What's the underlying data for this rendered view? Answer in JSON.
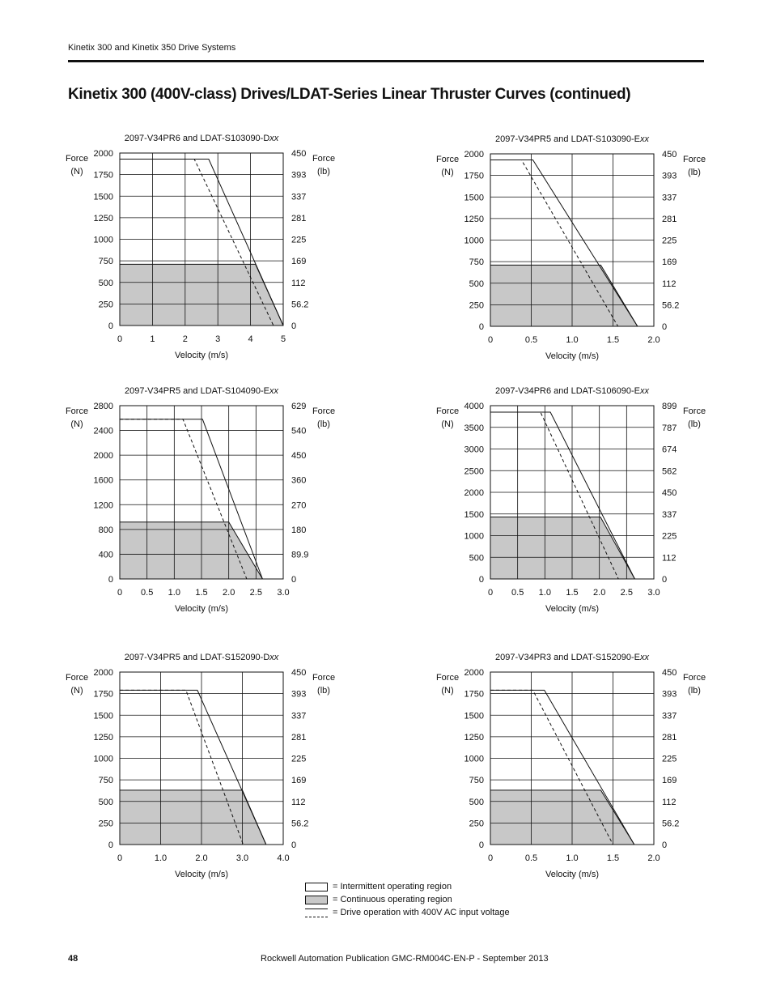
{
  "header": {
    "text": "Kinetix 300 and Kinetix 350 Drive Systems"
  },
  "page_title": "Kinetix 300 (400V-class) Drives/LDAT-Series Linear Thruster Curves (continued)",
  "common_labels": {
    "left_axis": [
      "Force",
      "(N)"
    ],
    "right_axis": [
      "Force",
      "(lb)"
    ],
    "xlabel": "Velocity (m/s)"
  },
  "chart_data": [
    {
      "type": "area",
      "title_prefix": "2097-V34PR6 and LDAT-S103090-D",
      "title_suffix": "xx",
      "xlabel": "Velocity (m/s)",
      "ylabel": "Force (N)",
      "y2label": "Force (lb)",
      "xlim": [
        0,
        5
      ],
      "ylim": [
        0,
        2000
      ],
      "x_ticks": [
        {
          "v": 0,
          "t": "0"
        },
        {
          "v": 1,
          "t": "1"
        },
        {
          "v": 2,
          "t": "2"
        },
        {
          "v": 3,
          "t": "3"
        },
        {
          "v": 4,
          "t": "4"
        },
        {
          "v": 5,
          "t": "5"
        }
      ],
      "y_ticks": [
        {
          "v": 0,
          "t": "0"
        },
        {
          "v": 250,
          "t": "250"
        },
        {
          "v": 500,
          "t": "500"
        },
        {
          "v": 750,
          "t": "750"
        },
        {
          "v": 1000,
          "t": "1000"
        },
        {
          "v": 1250,
          "t": "1250"
        },
        {
          "v": 1500,
          "t": "1500"
        },
        {
          "v": 1750,
          "t": "1750"
        },
        {
          "v": 2000,
          "t": "2000"
        }
      ],
      "y2_ticks": [
        {
          "v": 0,
          "t": "0"
        },
        {
          "v": 250,
          "t": "56.2"
        },
        {
          "v": 500,
          "t": "112"
        },
        {
          "v": 750,
          "t": "169"
        },
        {
          "v": 1000,
          "t": "225"
        },
        {
          "v": 1250,
          "t": "281"
        },
        {
          "v": 1500,
          "t": "337"
        },
        {
          "v": 1750,
          "t": "393"
        },
        {
          "v": 2000,
          "t": "450"
        }
      ],
      "intermittent": [
        [
          0,
          1930
        ],
        [
          2.72,
          1930
        ],
        [
          5,
          0
        ]
      ],
      "continuous": [
        [
          0,
          710
        ],
        [
          4.15,
          710
        ],
        [
          5,
          0
        ]
      ],
      "dashed_400v": [
        [
          0,
          1930
        ],
        [
          2.28,
          1930
        ],
        [
          4.7,
          0
        ]
      ]
    },
    {
      "type": "area",
      "title_prefix": "2097-V34PR5 and LDAT-S103090-E",
      "title_suffix": "xx",
      "xlabel": "Velocity (m/s)",
      "ylabel": "Force (N)",
      "y2label": "Force (lb)",
      "xlim": [
        0,
        2
      ],
      "ylim": [
        0,
        2000
      ],
      "x_ticks": [
        {
          "v": 0,
          "t": "0"
        },
        {
          "v": 0.5,
          "t": "0.5"
        },
        {
          "v": 1.0,
          "t": "1.0"
        },
        {
          "v": 1.5,
          "t": "1.5"
        },
        {
          "v": 2.0,
          "t": "2.0"
        }
      ],
      "y_ticks": [
        {
          "v": 0,
          "t": "0"
        },
        {
          "v": 250,
          "t": "250"
        },
        {
          "v": 500,
          "t": "500"
        },
        {
          "v": 750,
          "t": "750"
        },
        {
          "v": 1000,
          "t": "1000"
        },
        {
          "v": 1250,
          "t": "1250"
        },
        {
          "v": 1500,
          "t": "1500"
        },
        {
          "v": 1750,
          "t": "1750"
        },
        {
          "v": 2000,
          "t": "2000"
        }
      ],
      "y2_ticks": [
        {
          "v": 0,
          "t": "0"
        },
        {
          "v": 250,
          "t": "56.2"
        },
        {
          "v": 500,
          "t": "112"
        },
        {
          "v": 750,
          "t": "169"
        },
        {
          "v": 1000,
          "t": "225"
        },
        {
          "v": 1250,
          "t": "281"
        },
        {
          "v": 1500,
          "t": "337"
        },
        {
          "v": 1750,
          "t": "393"
        },
        {
          "v": 2000,
          "t": "450"
        }
      ],
      "intermittent": [
        [
          0,
          1930
        ],
        [
          0.52,
          1930
        ],
        [
          1.8,
          0
        ]
      ],
      "continuous": [
        [
          0,
          710
        ],
        [
          1.35,
          710
        ],
        [
          1.8,
          0
        ]
      ],
      "dashed_400v": [
        [
          0,
          1930
        ],
        [
          0.38,
          1930
        ],
        [
          1.56,
          0
        ]
      ]
    },
    {
      "type": "area",
      "title_prefix": "2097-V34PR5 and LDAT-S104090-E",
      "title_suffix": "xx",
      "xlabel": "Velocity (m/s)",
      "ylabel": "Force (N)",
      "y2label": "Force (lb)",
      "xlim": [
        0,
        3
      ],
      "ylim": [
        0,
        2800
      ],
      "x_ticks": [
        {
          "v": 0,
          "t": "0"
        },
        {
          "v": 0.5,
          "t": "0.5"
        },
        {
          "v": 1.0,
          "t": "1.0"
        },
        {
          "v": 1.5,
          "t": "1.5"
        },
        {
          "v": 2.0,
          "t": "2.0"
        },
        {
          "v": 2.5,
          "t": "2.5"
        },
        {
          "v": 3.0,
          "t": "3.0"
        }
      ],
      "y_ticks": [
        {
          "v": 0,
          "t": "0"
        },
        {
          "v": 400,
          "t": "400"
        },
        {
          "v": 800,
          "t": "800"
        },
        {
          "v": 1200,
          "t": "1200"
        },
        {
          "v": 1600,
          "t": "1600"
        },
        {
          "v": 2000,
          "t": "2000"
        },
        {
          "v": 2400,
          "t": "2400"
        },
        {
          "v": 2800,
          "t": "2800"
        }
      ],
      "y2_ticks": [
        {
          "v": 0,
          "t": "0"
        },
        {
          "v": 400,
          "t": "89.9"
        },
        {
          "v": 800,
          "t": "180"
        },
        {
          "v": 1200,
          "t": "270"
        },
        {
          "v": 1600,
          "t": "360"
        },
        {
          "v": 2000,
          "t": "450"
        },
        {
          "v": 2400,
          "t": "540"
        },
        {
          "v": 2800,
          "t": "629"
        }
      ],
      "intermittent": [
        [
          0,
          2580
        ],
        [
          1.52,
          2580
        ],
        [
          2.62,
          0
        ]
      ],
      "continuous": [
        [
          0,
          920
        ],
        [
          2.0,
          920
        ],
        [
          2.62,
          0
        ]
      ],
      "dashed_400v": [
        [
          0,
          2580
        ],
        [
          1.16,
          2580
        ],
        [
          2.33,
          0
        ]
      ]
    },
    {
      "type": "area",
      "title_prefix": "2097-V34PR6 and LDAT-S106090-E",
      "title_suffix": "xx",
      "xlabel": "Velocity (m/s)",
      "ylabel": "Force (N)",
      "y2label": "Force (lb)",
      "xlim": [
        0,
        3
      ],
      "ylim": [
        0,
        4000
      ],
      "x_ticks": [
        {
          "v": 0,
          "t": "0"
        },
        {
          "v": 0.5,
          "t": "0.5"
        },
        {
          "v": 1.0,
          "t": "1.0"
        },
        {
          "v": 1.5,
          "t": "1.5"
        },
        {
          "v": 2.0,
          "t": "2.0"
        },
        {
          "v": 2.5,
          "t": "2.5"
        },
        {
          "v": 3.0,
          "t": "3.0"
        }
      ],
      "y_ticks": [
        {
          "v": 0,
          "t": "0"
        },
        {
          "v": 500,
          "t": "500"
        },
        {
          "v": 1000,
          "t": "1000"
        },
        {
          "v": 1500,
          "t": "1500"
        },
        {
          "v": 2000,
          "t": "2000"
        },
        {
          "v": 2500,
          "t": "2500"
        },
        {
          "v": 3000,
          "t": "3000"
        },
        {
          "v": 3500,
          "t": "3500"
        },
        {
          "v": 4000,
          "t": "4000"
        }
      ],
      "y2_ticks": [
        {
          "v": 0,
          "t": "0"
        },
        {
          "v": 500,
          "t": "112"
        },
        {
          "v": 1000,
          "t": "225"
        },
        {
          "v": 1500,
          "t": "337"
        },
        {
          "v": 2000,
          "t": "450"
        },
        {
          "v": 2500,
          "t": "562"
        },
        {
          "v": 3000,
          "t": "674"
        },
        {
          "v": 3500,
          "t": "787"
        },
        {
          "v": 4000,
          "t": "899"
        }
      ],
      "intermittent": [
        [
          0,
          3850
        ],
        [
          1.1,
          3850
        ],
        [
          2.65,
          0
        ]
      ],
      "continuous": [
        [
          0,
          1430
        ],
        [
          2.02,
          1430
        ],
        [
          2.65,
          0
        ]
      ],
      "dashed_400v": [
        [
          0,
          3850
        ],
        [
          0.92,
          3850
        ],
        [
          2.35,
          0
        ]
      ]
    },
    {
      "type": "area",
      "title_prefix": "2097-V34PR5 and LDAT-S152090-D",
      "title_suffix": "xx",
      "xlabel": "Velocity (m/s)",
      "ylabel": "Force (N)",
      "y2label": "Force (lb)",
      "xlim": [
        0,
        4
      ],
      "ylim": [
        0,
        2000
      ],
      "x_ticks": [
        {
          "v": 0,
          "t": "0"
        },
        {
          "v": 1.0,
          "t": "1.0"
        },
        {
          "v": 2.0,
          "t": "2.0"
        },
        {
          "v": 3.0,
          "t": "3.0"
        },
        {
          "v": 4.0,
          "t": "4.0"
        }
      ],
      "y_ticks": [
        {
          "v": 0,
          "t": "0"
        },
        {
          "v": 250,
          "t": "250"
        },
        {
          "v": 500,
          "t": "500"
        },
        {
          "v": 750,
          "t": "750"
        },
        {
          "v": 1000,
          "t": "1000"
        },
        {
          "v": 1250,
          "t": "1250"
        },
        {
          "v": 1500,
          "t": "1500"
        },
        {
          "v": 1750,
          "t": "1750"
        },
        {
          "v": 2000,
          "t": "2000"
        }
      ],
      "y2_ticks": [
        {
          "v": 0,
          "t": "0"
        },
        {
          "v": 250,
          "t": "56.2"
        },
        {
          "v": 500,
          "t": "112"
        },
        {
          "v": 750,
          "t": "169"
        },
        {
          "v": 1000,
          "t": "225"
        },
        {
          "v": 1250,
          "t": "281"
        },
        {
          "v": 1500,
          "t": "337"
        },
        {
          "v": 1750,
          "t": "393"
        },
        {
          "v": 2000,
          "t": "450"
        }
      ],
      "intermittent": [
        [
          0,
          1790
        ],
        [
          1.9,
          1790
        ],
        [
          3.58,
          0
        ]
      ],
      "continuous": [
        [
          0,
          630
        ],
        [
          3.0,
          630
        ],
        [
          3.58,
          0
        ]
      ],
      "dashed_400v": [
        [
          0,
          1790
        ],
        [
          1.62,
          1790
        ],
        [
          3.02,
          0
        ]
      ]
    },
    {
      "type": "area",
      "title_prefix": "2097-V34PR3 and LDAT-S152090-E",
      "title_suffix": "xx",
      "xlabel": "Velocity (m/s)",
      "ylabel": "Force (N)",
      "y2label": "Force (lb)",
      "xlim": [
        0,
        2
      ],
      "ylim": [
        0,
        2000
      ],
      "x_ticks": [
        {
          "v": 0,
          "t": "0"
        },
        {
          "v": 0.5,
          "t": "0.5"
        },
        {
          "v": 1.0,
          "t": "1.0"
        },
        {
          "v": 1.5,
          "t": "1.5"
        },
        {
          "v": 2.0,
          "t": "2.0"
        }
      ],
      "y_ticks": [
        {
          "v": 0,
          "t": "0"
        },
        {
          "v": 250,
          "t": "250"
        },
        {
          "v": 500,
          "t": "500"
        },
        {
          "v": 750,
          "t": "750"
        },
        {
          "v": 1000,
          "t": "1000"
        },
        {
          "v": 1250,
          "t": "1250"
        },
        {
          "v": 1500,
          "t": "1500"
        },
        {
          "v": 1750,
          "t": "1750"
        },
        {
          "v": 2000,
          "t": "2000"
        }
      ],
      "y2_ticks": [
        {
          "v": 0,
          "t": "0"
        },
        {
          "v": 250,
          "t": "56.2"
        },
        {
          "v": 500,
          "t": "112"
        },
        {
          "v": 750,
          "t": "169"
        },
        {
          "v": 1000,
          "t": "225"
        },
        {
          "v": 1250,
          "t": "281"
        },
        {
          "v": 1500,
          "t": "337"
        },
        {
          "v": 1750,
          "t": "393"
        },
        {
          "v": 2000,
          "t": "450"
        }
      ],
      "intermittent": [
        [
          0,
          1790
        ],
        [
          0.66,
          1790
        ],
        [
          1.76,
          0
        ]
      ],
      "continuous": [
        [
          0,
          630
        ],
        [
          1.35,
          630
        ],
        [
          1.76,
          0
        ]
      ],
      "dashed_400v": [
        [
          0,
          1790
        ],
        [
          0.52,
          1790
        ],
        [
          1.5,
          0
        ]
      ]
    }
  ],
  "legend": {
    "intermittent": "= Intermittent operating region",
    "continuous": "= Continuous operating region",
    "dashed": "= Drive operation with 400V AC input voltage"
  },
  "footer": {
    "page_number": "48",
    "publication": "Rockwell Automation Publication GMC-RM004C-EN-P - September 2013"
  }
}
